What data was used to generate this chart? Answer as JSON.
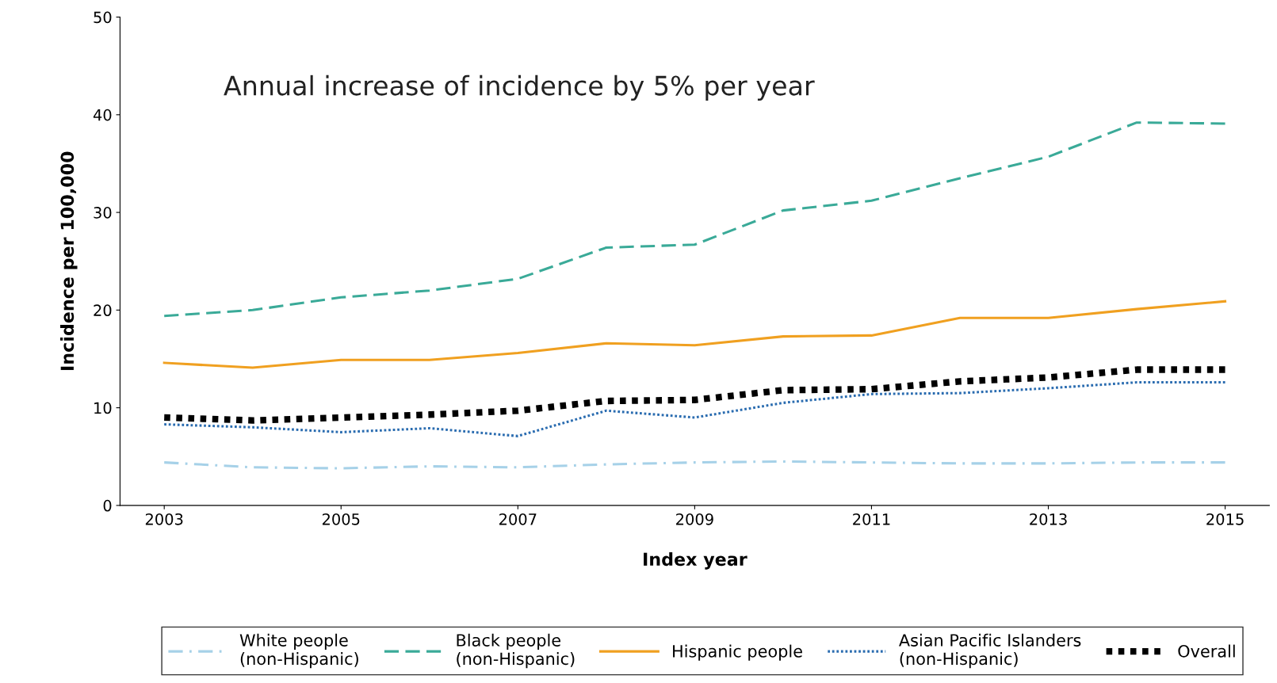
{
  "chart_data": {
    "type": "line",
    "xlabel": "Index year",
    "ylabel": "Incidence per 100,000",
    "annotations": [
      "Annual increase of incidence by 5% per year"
    ],
    "x": [
      2003,
      2004,
      2005,
      2006,
      2007,
      2008,
      2009,
      2010,
      2011,
      2012,
      2013,
      2014,
      2015
    ],
    "xlim": [
      2002.5,
      2015.5
    ],
    "xticks": [
      2003,
      2005,
      2007,
      2009,
      2011,
      2013,
      2015
    ],
    "ylim": [
      0,
      50
    ],
    "yticks": [
      0,
      10,
      20,
      30,
      40,
      50
    ],
    "grid": false,
    "legend": "bottom",
    "marker": "none",
    "series": [
      {
        "name": "White people\n(non-Hispanic)",
        "color": "#a6d1e8",
        "line_style": "dashdot",
        "values": [
          4.4,
          3.9,
          3.8,
          4.0,
          3.9,
          4.2,
          4.4,
          4.5,
          4.4,
          4.3,
          4.3,
          4.4,
          4.4
        ]
      },
      {
        "name": "Black people\n(non-Hispanic)",
        "color": "#3aaa98",
        "line_style": "dashed",
        "values": [
          19.4,
          20.0,
          21.3,
          22.0,
          23.2,
          26.4,
          26.7,
          30.2,
          31.2,
          33.5,
          35.7,
          39.2,
          39.1
        ]
      },
      {
        "name": "Hispanic people",
        "color": "#f0a020",
        "line_style": "solid",
        "values": [
          14.6,
          14.1,
          14.9,
          14.9,
          15.6,
          16.6,
          16.4,
          17.3,
          17.4,
          19.2,
          19.2,
          20.1,
          20.9
        ]
      },
      {
        "name": "Asian Pacific Islanders\n(non-Hispanic)",
        "color": "#2a6cb0",
        "line_style": "dotted",
        "values": [
          8.3,
          8.0,
          7.5,
          7.9,
          7.1,
          9.7,
          9.0,
          10.5,
          11.4,
          11.5,
          12.0,
          12.6,
          12.6
        ]
      },
      {
        "name": "Overall",
        "color": "#000000",
        "line_style": "dotted",
        "values": [
          9.0,
          8.7,
          9.0,
          9.3,
          9.7,
          10.7,
          10.8,
          11.8,
          11.9,
          12.7,
          13.1,
          13.9,
          13.9
        ]
      }
    ]
  }
}
